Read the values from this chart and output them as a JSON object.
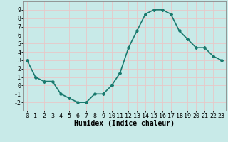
{
  "x": [
    0,
    1,
    2,
    3,
    4,
    5,
    6,
    7,
    8,
    9,
    10,
    11,
    12,
    13,
    14,
    15,
    16,
    17,
    18,
    19,
    20,
    21,
    22,
    23
  ],
  "y": [
    3,
    1,
    0.5,
    0.5,
    -1,
    -1.5,
    -2,
    -2,
    -1,
    -1,
    0,
    1.5,
    4.5,
    6.5,
    8.5,
    9,
    9,
    8.5,
    6.5,
    5.5,
    4.5,
    4.5,
    3.5,
    3
  ],
  "line_color": "#1a7a6e",
  "marker": "D",
  "marker_size": 2,
  "bg_color": "#c8eae8",
  "grid_color": "#e8c8c8",
  "xlabel": "Humidex (Indice chaleur)",
  "xlim": [
    -0.5,
    23.5
  ],
  "ylim": [
    -3,
    10
  ],
  "yticks": [
    -2,
    -1,
    0,
    1,
    2,
    3,
    4,
    5,
    6,
    7,
    8,
    9
  ],
  "xticks": [
    0,
    1,
    2,
    3,
    4,
    5,
    6,
    7,
    8,
    9,
    10,
    11,
    12,
    13,
    14,
    15,
    16,
    17,
    18,
    19,
    20,
    21,
    22,
    23
  ],
  "xlabel_fontsize": 7,
  "tick_fontsize": 6,
  "line_width": 1.2
}
